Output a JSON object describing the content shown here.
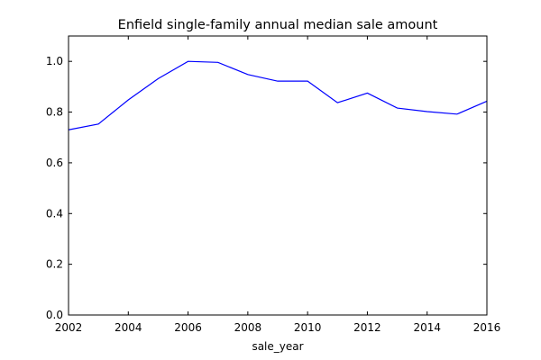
{
  "chart_data": {
    "type": "line",
    "title": "Enfield single-family annual median sale amount",
    "xlabel": "sale_year",
    "ylabel": "",
    "xlim": [
      2002,
      2016
    ],
    "ylim": [
      0.0,
      1.1
    ],
    "xticks": [
      "2002",
      "2004",
      "2006",
      "2008",
      "2010",
      "2012",
      "2014",
      "2016"
    ],
    "yticks": [
      "0.0",
      "0.2",
      "0.4",
      "0.6",
      "0.8",
      "1.0"
    ],
    "grid": false,
    "series": [
      {
        "color": "#0000ff",
        "x": [
          2002,
          2003,
          2004,
          2005,
          2006,
          2007,
          2008,
          2009,
          2010,
          2011,
          2012,
          2013,
          2014,
          2015,
          2016
        ],
        "y": [
          0.73,
          0.753,
          0.848,
          0.932,
          1.0,
          0.996,
          0.948,
          0.922,
          0.922,
          0.837,
          0.875,
          0.816,
          0.802,
          0.792,
          0.843
        ]
      }
    ]
  }
}
